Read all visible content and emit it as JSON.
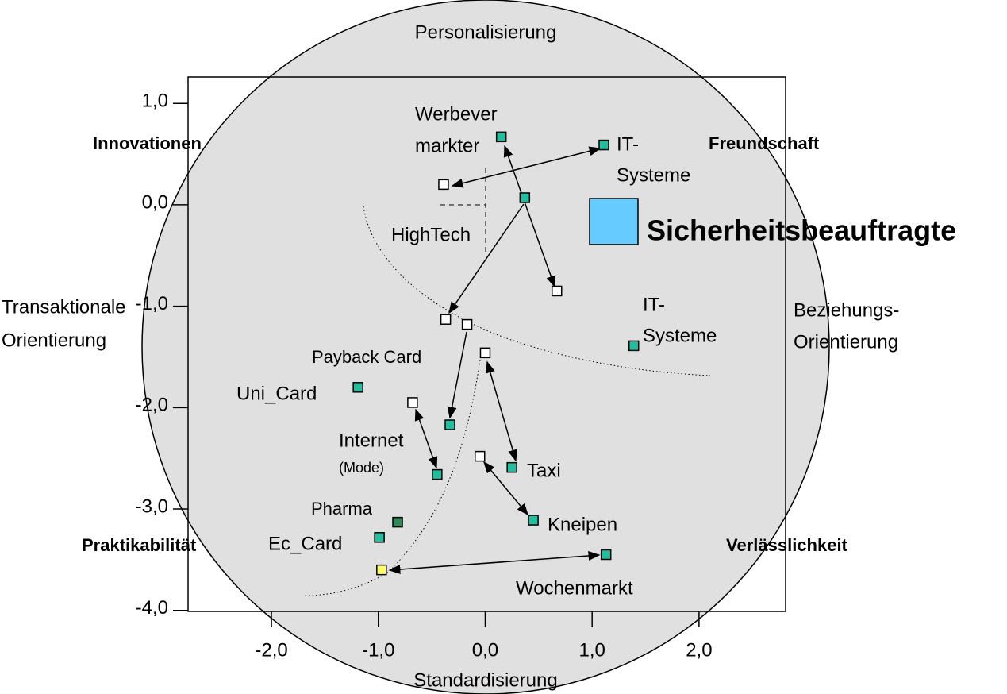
{
  "chart_data": {
    "type": "scatter",
    "xlim": [
      -2.78,
      2.81
    ],
    "ylim": [
      -4.01,
      1.26
    ],
    "xticks": [
      {
        "value": -2,
        "label": "-2,0"
      },
      {
        "value": -1,
        "label": "-1,0"
      },
      {
        "value": 0,
        "label": "0,0"
      },
      {
        "value": 1,
        "label": "1,0"
      },
      {
        "value": 2,
        "label": "2,0"
      }
    ],
    "yticks": [
      {
        "value": 1,
        "label": "1,0"
      },
      {
        "value": 0,
        "label": "0,0"
      },
      {
        "value": -1,
        "label": "-1,0"
      },
      {
        "value": -2,
        "label": "-2,0"
      },
      {
        "value": -3,
        "label": "-3,0"
      },
      {
        "value": -4,
        "label": "-4,0"
      }
    ],
    "series": [
      {
        "color": "#1fbf9f",
        "x": [
          0.15,
          1.11,
          0.37,
          1.39,
          -1.19,
          -0.33,
          0.25,
          -0.45,
          0.45,
          -0.99,
          1.13
        ],
        "values": [
          0.67,
          0.59,
          0.07,
          -1.39,
          -1.8,
          -2.17,
          -2.59,
          -2.66,
          -3.11,
          -3.28,
          -3.45
        ]
      },
      {
        "color": "#ffffff",
        "x": [
          -0.39,
          0.67,
          -0.37,
          -0.17,
          0.0,
          -0.68,
          -0.05
        ],
        "values": [
          0.2,
          -0.85,
          -1.13,
          -1.18,
          -1.46,
          -1.95,
          -2.48
        ]
      },
      {
        "color": "#2e8b57",
        "x": [
          -0.82
        ],
        "values": [
          -3.13
        ]
      },
      {
        "color": "#ffff66",
        "x": [
          -0.97
        ],
        "values": [
          -3.6
        ]
      }
    ],
    "legend": {
      "label": "Sicherheitsbeauftragte",
      "color": "#66ccff"
    },
    "annotations": [
      [
        "Personalisierung"
      ],
      [
        "Standardisierung"
      ],
      [
        "Transaktionale",
        "Orientierung"
      ],
      [
        "Beziehungs-",
        "Orientierung"
      ],
      [
        "Innovationen"
      ],
      [
        "Freundschaft"
      ],
      [
        "Praktikabilität"
      ],
      [
        "Verlässlichkeit"
      ],
      [
        "HighTech"
      ],
      [
        "Werbever",
        "markter"
      ],
      [
        "IT-",
        "Systeme"
      ],
      [
        "IT-",
        "Systeme"
      ],
      [
        "Payback Card"
      ],
      [
        "Uni_Card"
      ],
      [
        "Internet"
      ],
      [
        "(Mode)"
      ],
      [
        "Taxi"
      ],
      [
        "Pharma"
      ],
      [
        "Ec_Card"
      ],
      [
        "Kneipen"
      ],
      [
        "Wochenmarkt"
      ]
    ]
  }
}
